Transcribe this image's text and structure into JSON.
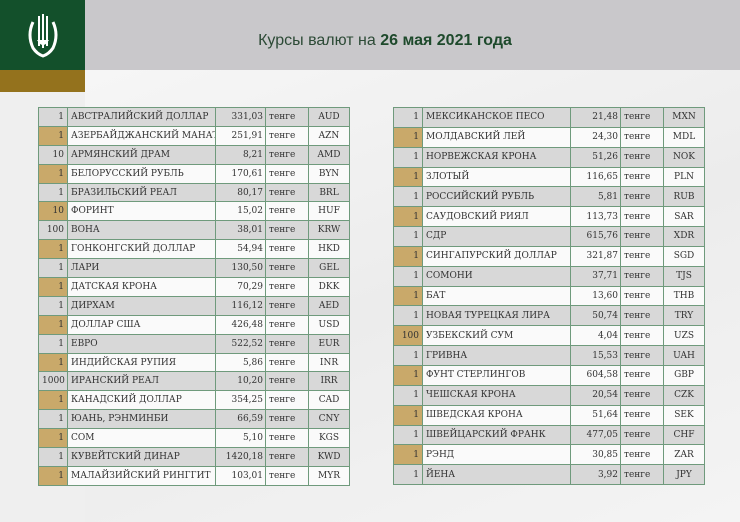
{
  "header": {
    "title_prefix": "Курсы валют на ",
    "title_date": "26 мая 2021 года"
  },
  "colors": {
    "green": "#13502b",
    "gold": "#94721d",
    "qty_highlight": "#c9a96a"
  },
  "unit": "тенге",
  "left_table": [
    [
      "1",
      "АВСТРАЛИЙСКИЙ ДОЛЛАР",
      "331,03",
      "AUD"
    ],
    [
      "1",
      "АЗЕРБАЙДЖАНСКИЙ МАНАТ",
      "251,91",
      "AZN"
    ],
    [
      "10",
      "АРМЯНСКИЙ  ДРАМ",
      "8,21",
      "AMD"
    ],
    [
      "1",
      "БЕЛОРУССКИЙ РУБЛЬ",
      "170,61",
      "BYN"
    ],
    [
      "1",
      "БРАЗИЛЬСКИЙ РЕАЛ",
      "80,17",
      "BRL"
    ],
    [
      "10",
      "ФОРИНТ",
      "15,02",
      "HUF"
    ],
    [
      "100",
      "ВОНА",
      "38,01",
      "KRW"
    ],
    [
      "1",
      "ГОНКОНГСКИЙ ДОЛЛАР",
      "54,94",
      "HKD"
    ],
    [
      "1",
      "ЛАРИ",
      "130,50",
      "GEL"
    ],
    [
      "1",
      "ДАТСКАЯ КРОНА",
      "70,29",
      "DKK"
    ],
    [
      "1",
      "ДИРХАМ",
      "116,12",
      "AED"
    ],
    [
      "1",
      "ДОЛЛАР США",
      "426,48",
      "USD"
    ],
    [
      "1",
      "ЕВРО",
      "522,52",
      "EUR"
    ],
    [
      "1",
      "ИНДИЙСКАЯ РУПИЯ",
      "5,86",
      "INR"
    ],
    [
      "1000",
      "ИРАНСКИЙ РЕАЛ",
      "10,20",
      "IRR"
    ],
    [
      "1",
      "КАНАДСКИЙ ДОЛЛАР",
      "354,25",
      "CAD"
    ],
    [
      "1",
      "ЮАНЬ, РЭНМИНБИ",
      "66,59",
      "CNY"
    ],
    [
      "1",
      "СОМ",
      "5,10",
      "KGS"
    ],
    [
      "1",
      "КУВЕЙТСКИЙ ДИНАР",
      "1420,18",
      "KWD"
    ],
    [
      "1",
      "МАЛАЙЗИЙСКИЙ РИНГГИТ",
      "103,01",
      "MYR"
    ]
  ],
  "right_table": [
    [
      "1",
      "МЕКСИКАНСКОЕ ПЕСО",
      "21,48",
      "MXN"
    ],
    [
      "1",
      "МОЛДАВСКИЙ ЛЕЙ",
      "24,30",
      "MDL"
    ],
    [
      "1",
      "НОРВЕЖСКАЯ КРОНА",
      "51,26",
      "NOK"
    ],
    [
      "1",
      "ЗЛОТЫЙ",
      "116,65",
      "PLN"
    ],
    [
      "1",
      "РОССИЙСКИЙ РУБЛЬ",
      "5,81",
      "RUB"
    ],
    [
      "1",
      "САУДОВСКИЙ РИЯЛ",
      "113,73",
      "SAR"
    ],
    [
      "1",
      "СДР",
      "615,76",
      "XDR"
    ],
    [
      "1",
      "СИНГАПУРСКИЙ ДОЛЛАР",
      "321,87",
      "SGD"
    ],
    [
      "1",
      "СОМОНИ",
      "37,71",
      "TJS"
    ],
    [
      "1",
      "БАТ",
      "13,60",
      "THB"
    ],
    [
      "1",
      "НОВАЯ ТУРЕЦКАЯ ЛИРА",
      "50,74",
      "TRY"
    ],
    [
      "100",
      "УЗБЕКСКИЙ СУМ",
      "4,04",
      "UZS"
    ],
    [
      "1",
      "ГРИВНА",
      "15,53",
      "UAH"
    ],
    [
      "1",
      "ФУНТ СТЕРЛИНГОВ",
      "604,58",
      "GBP"
    ],
    [
      "1",
      "ЧЕШСКАЯ КРОНА",
      "20,54",
      "CZK"
    ],
    [
      "1",
      "ШВЕДСКАЯ КРОНА",
      "51,64",
      "SEK"
    ],
    [
      "1",
      "ШВЕЙЦАРСКИЙ ФРАНК",
      "477,05",
      "CHF"
    ],
    [
      "1",
      "РЭНД",
      "30,85",
      "ZAR"
    ],
    [
      "1",
      "ЙЕНА",
      "3,92",
      "JPY"
    ]
  ]
}
